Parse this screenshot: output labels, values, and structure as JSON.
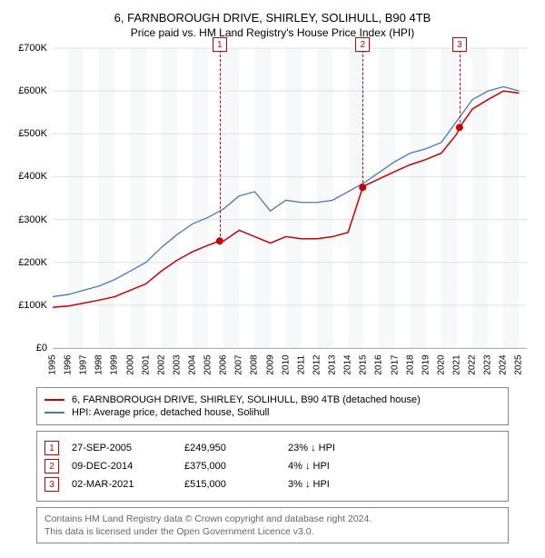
{
  "title": "6, FARNBOROUGH DRIVE, SHIRLEY, SOLIHULL, B90 4TB",
  "subtitle": "Price paid vs. HM Land Registry's House Price Index (HPI)",
  "chart": {
    "type": "line",
    "background_color": "#ffffff",
    "plot_bg_color": "#f0f2f5",
    "grid_color": "#e0e0e0",
    "x_min_year": 1995,
    "x_max_year": 2025.5,
    "y_min": 0,
    "y_max": 700000,
    "y_tick_step": 100000,
    "y_tick_prefix": "£",
    "y_tick_suffix": "K",
    "x_years": [
      1995,
      1996,
      1997,
      1998,
      1999,
      2000,
      2001,
      2002,
      2003,
      2004,
      2005,
      2006,
      2007,
      2008,
      2009,
      2010,
      2011,
      2012,
      2013,
      2014,
      2015,
      2016,
      2017,
      2018,
      2019,
      2020,
      2021,
      2022,
      2023,
      2024,
      2025
    ],
    "series": [
      {
        "name": "6, FARNBOROUGH DRIVE, SHIRLEY, SOLIHULL, B90 4TB (detached house)",
        "color": "#cc0000",
        "width": 1.5,
        "points": [
          [
            1995,
            95
          ],
          [
            1996,
            98
          ],
          [
            1997,
            105
          ],
          [
            1998,
            112
          ],
          [
            1999,
            120
          ],
          [
            2000,
            135
          ],
          [
            2001,
            150
          ],
          [
            2002,
            180
          ],
          [
            2003,
            205
          ],
          [
            2004,
            225
          ],
          [
            2005,
            240
          ],
          [
            2005.74,
            250
          ],
          [
            2006,
            250
          ],
          [
            2007,
            275
          ],
          [
            2008,
            260
          ],
          [
            2009,
            245
          ],
          [
            2010,
            260
          ],
          [
            2011,
            255
          ],
          [
            2012,
            255
          ],
          [
            2013,
            260
          ],
          [
            2014,
            270
          ],
          [
            2014.94,
            375
          ],
          [
            2015,
            378
          ],
          [
            2016,
            395
          ],
          [
            2017,
            412
          ],
          [
            2018,
            428
          ],
          [
            2019,
            440
          ],
          [
            2020,
            455
          ],
          [
            2021,
            500
          ],
          [
            2021.17,
            515
          ],
          [
            2022,
            558
          ],
          [
            2023,
            580
          ],
          [
            2024,
            600
          ],
          [
            2025,
            595
          ]
        ]
      },
      {
        "name": "HPI: Average price, detached house, Solihull",
        "color": "#4a78b5",
        "width": 1.3,
        "points": [
          [
            1995,
            120
          ],
          [
            1996,
            125
          ],
          [
            1997,
            135
          ],
          [
            1998,
            145
          ],
          [
            1999,
            160
          ],
          [
            2000,
            180
          ],
          [
            2001,
            200
          ],
          [
            2002,
            235
          ],
          [
            2003,
            265
          ],
          [
            2004,
            290
          ],
          [
            2005,
            305
          ],
          [
            2006,
            325
          ],
          [
            2007,
            355
          ],
          [
            2008,
            365
          ],
          [
            2009,
            320
          ],
          [
            2010,
            345
          ],
          [
            2011,
            340
          ],
          [
            2012,
            340
          ],
          [
            2013,
            345
          ],
          [
            2014,
            365
          ],
          [
            2015,
            385
          ],
          [
            2016,
            410
          ],
          [
            2017,
            435
          ],
          [
            2018,
            455
          ],
          [
            2019,
            465
          ],
          [
            2020,
            480
          ],
          [
            2021,
            530
          ],
          [
            2022,
            580
          ],
          [
            2023,
            600
          ],
          [
            2024,
            610
          ],
          [
            2025,
            600
          ]
        ]
      }
    ],
    "markers": [
      {
        "label": "1",
        "year": 2005.74,
        "dot_series": 0,
        "dot_value": 250
      },
      {
        "label": "2",
        "year": 2014.94,
        "dot_series": 0,
        "dot_value": 375
      },
      {
        "label": "3",
        "year": 2021.17,
        "dot_series": 0,
        "dot_value": 515
      }
    ],
    "dot_color": "#cc0000",
    "dot_radius": 4
  },
  "legend": {
    "items": [
      {
        "color": "#cc0000",
        "label": "6, FARNBOROUGH DRIVE, SHIRLEY, SOLIHULL, B90 4TB (detached house)"
      },
      {
        "color": "#4a78b5",
        "label": "HPI: Average price, detached house, Solihull"
      }
    ]
  },
  "sales": [
    {
      "num": "1",
      "date": "27-SEP-2005",
      "price": "£249,950",
      "diff": "23% ↓ HPI"
    },
    {
      "num": "2",
      "date": "09-DEC-2014",
      "price": "£375,000",
      "diff": "4% ↓ HPI"
    },
    {
      "num": "3",
      "date": "02-MAR-2021",
      "price": "£515,000",
      "diff": "3% ↓ HPI"
    }
  ],
  "footer": {
    "line1": "Contains HM Land Registry data © Crown copyright and database right 2024.",
    "line2": "This data is licensed under the Open Government Licence v3.0."
  }
}
